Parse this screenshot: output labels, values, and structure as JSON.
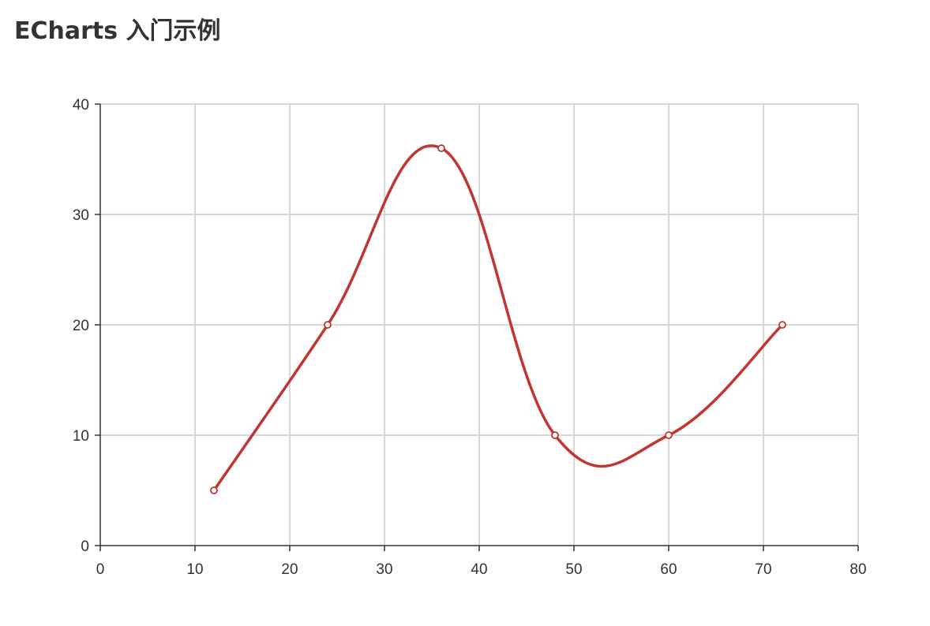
{
  "page": {
    "title": "ECharts 入门示例"
  },
  "chart_data": {
    "type": "line",
    "smooth": true,
    "x_axis": {
      "type": "value",
      "min": 0,
      "max": 80,
      "ticks": [
        0,
        10,
        20,
        30,
        40,
        50,
        60,
        70,
        80
      ]
    },
    "y_axis": {
      "type": "value",
      "min": 0,
      "max": 40,
      "ticks": [
        0,
        10,
        20,
        30,
        40
      ]
    },
    "grid": true,
    "series": [
      {
        "color": "#c23531",
        "points": [
          {
            "x": 12,
            "y": 5
          },
          {
            "x": 24,
            "y": 20
          },
          {
            "x": 36,
            "y": 36
          },
          {
            "x": 48,
            "y": 10
          },
          {
            "x": 60,
            "y": 10
          },
          {
            "x": 72,
            "y": 20
          }
        ]
      }
    ],
    "colors": {
      "axis": "#333333",
      "grid": "#cccccc",
      "marker_fill": "#ffffff"
    }
  }
}
